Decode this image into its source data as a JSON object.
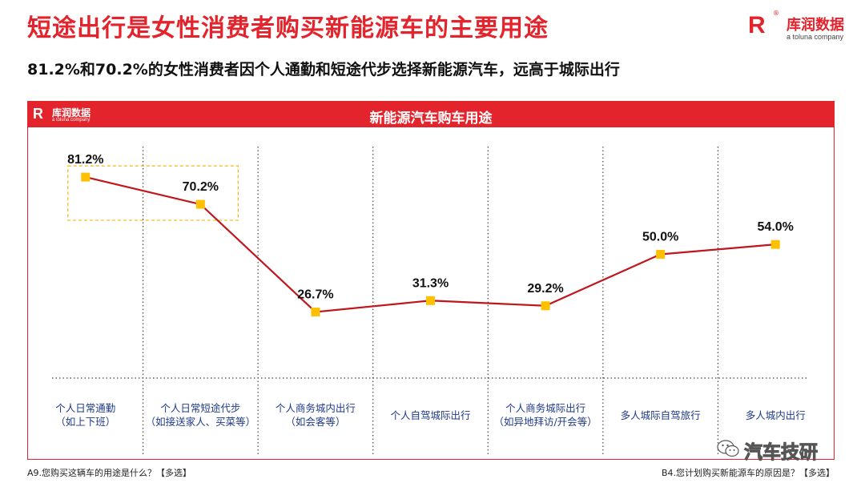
{
  "header": {
    "title": "短途出行是女性消费者购买新能源车的主要用途",
    "subtitle": "81.2%和70.2%的女性消费者因个人通勤和短途代步选择新能源汽车，远高于城际出行"
  },
  "brand": {
    "logo_mark": "R",
    "registered": "®",
    "name": "库润数据",
    "tagline": "a toluna company"
  },
  "chart_panel": {
    "title": "新能源汽车购车用途",
    "mini_logo_mark": "R",
    "mini_logo_name": "库润数据",
    "mini_logo_tagline": "a toluna company"
  },
  "chart_data": {
    "type": "line",
    "title": "新能源汽车购车用途",
    "categories": [
      [
        "个人日常通勤",
        "（如上下班）"
      ],
      [
        "个人日常短途代步",
        "（如接送家人、买菜等）"
      ],
      [
        "个人商务城内出行",
        "（如会客等）"
      ],
      [
        "个人自驾城际出行"
      ],
      [
        "个人商务城际出行",
        "（如异地拜访/开会等）"
      ],
      [
        "多人城际自驾旅行"
      ],
      [
        "多人城内出行"
      ]
    ],
    "values": [
      81.2,
      70.2,
      26.7,
      31.3,
      29.2,
      50.0,
      54.0
    ],
    "value_labels": [
      "81.2%",
      "70.2%",
      "26.7%",
      "31.3%",
      "29.2%",
      "50.0%",
      "54.0%"
    ],
    "ylim": [
      0,
      100
    ],
    "highlight_indices": [
      0,
      1
    ],
    "colors": {
      "line": "#c0161c",
      "marker": "#ffc000",
      "highlight_box": "#f2b51a",
      "grid": "#444444"
    }
  },
  "footer": {
    "left_note": "A9.您购买这辆车的用途是什么？【多选】",
    "right_note": "B4.您计划购买新能源车的原因是？【多选】"
  },
  "watermark": {
    "text": "汽车技研",
    "icon": "wechat-icon"
  },
  "colors": {
    "accent": "#e4242c"
  }
}
